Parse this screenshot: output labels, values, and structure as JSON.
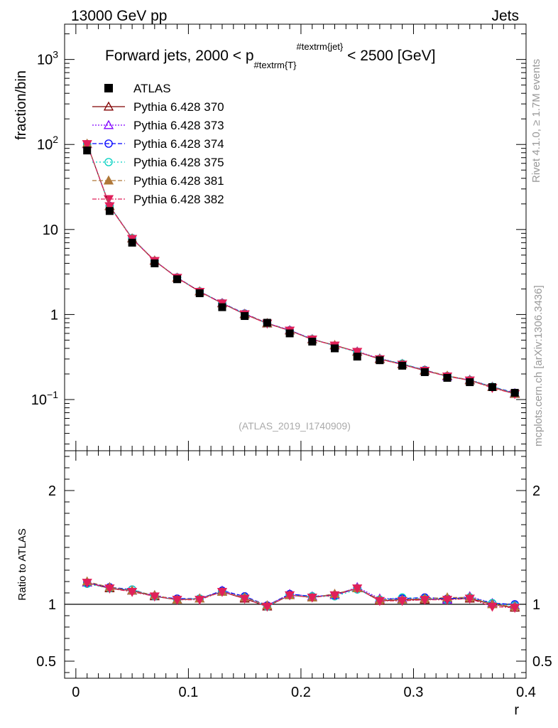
{
  "header": {
    "left": "13000 GeV pp",
    "right": "Jets"
  },
  "side": {
    "rivet": "Rivet 4.1.0, ≥ 1.7M events",
    "site": "mcplots.cern.ch [arXiv:1306.3436]"
  },
  "chart_data": [
    {
      "type": "line",
      "title": "Forward jets, 2000 < p#textrm{T}#textrm{jet} < 2500 [GeV]",
      "title_parts": {
        "pre": "Forward jets, 2000 < p",
        "sub": "#textrm{T}",
        "sup": "#textrm{jet}",
        "post": " < 2500 [GeV]"
      },
      "analysis_id": "(ATLAS_2019_I1740909)",
      "ylabel": "fraction/bin",
      "yscale": "log",
      "ylim": [
        0.025,
        2600
      ],
      "xlim": [
        -0.01,
        0.4
      ],
      "y_ticks": [
        {
          "value": 1000,
          "base": "10",
          "exp": "3"
        },
        {
          "value": 100,
          "base": "10",
          "exp": "2"
        },
        {
          "value": 10,
          "base": "10",
          "exp": ""
        },
        {
          "value": 1,
          "base": "1",
          "exp": ""
        },
        {
          "value": 0.1,
          "base": "10",
          "exp": "−1"
        }
      ],
      "x": [
        0.01,
        0.03,
        0.05,
        0.07,
        0.09,
        0.11,
        0.13,
        0.15,
        0.17,
        0.19,
        0.21,
        0.23,
        0.25,
        0.27,
        0.29,
        0.31,
        0.33,
        0.35,
        0.37,
        0.39
      ],
      "reference": {
        "name": "ATLAS",
        "color": "#000000",
        "values": [
          85,
          16.5,
          7.0,
          4.0,
          2.6,
          1.78,
          1.22,
          0.96,
          0.8,
          0.6,
          0.48,
          0.4,
          0.32,
          0.29,
          0.25,
          0.21,
          0.18,
          0.16,
          0.14,
          0.12
        ]
      },
      "series": [
        {
          "name": "Pythia 6.428 370",
          "color": "#800000",
          "marker": "triangle-up-open",
          "dash": "",
          "ratio": [
            1.19,
            1.14,
            1.12,
            1.07,
            1.04,
            1.05,
            1.11,
            1.05,
            0.98,
            1.08,
            1.06,
            1.09,
            1.14,
            1.03,
            1.04,
            1.04,
            1.05,
            1.05,
            1.0,
            0.97
          ]
        },
        {
          "name": "Pythia 6.428 373",
          "color": "#8000ff",
          "marker": "triangle-up-open",
          "dash": "2,2",
          "ratio": [
            1.19,
            1.15,
            1.12,
            1.08,
            1.04,
            1.05,
            1.12,
            1.06,
            0.99,
            1.09,
            1.07,
            1.08,
            1.15,
            1.05,
            1.05,
            1.05,
            1.04,
            1.07,
            1.01,
            0.99
          ]
        },
        {
          "name": "Pythia 6.428 374",
          "color": "#0000ff",
          "marker": "circle-open",
          "dash": "6,3",
          "ratio": [
            1.19,
            1.15,
            1.13,
            1.07,
            1.05,
            1.05,
            1.12,
            1.07,
            0.99,
            1.09,
            1.07,
            1.08,
            1.14,
            1.04,
            1.05,
            1.06,
            1.05,
            1.06,
            1.01,
            1.0
          ]
        },
        {
          "name": "Pythia 6.428 375",
          "color": "#00d0c0",
          "marker": "circle-open",
          "dash": "2,3",
          "ratio": [
            1.18,
            1.14,
            1.13,
            1.07,
            1.04,
            1.05,
            1.11,
            1.06,
            0.98,
            1.08,
            1.07,
            1.07,
            1.13,
            1.04,
            1.06,
            1.05,
            1.04,
            1.06,
            1.01,
            0.99
          ]
        },
        {
          "name": "Pythia 6.428 381",
          "color": "#b07838",
          "marker": "triangle-up",
          "dash": "6,3",
          "ratio": [
            1.2,
            1.15,
            1.12,
            1.08,
            1.04,
            1.05,
            1.11,
            1.06,
            0.99,
            1.08,
            1.06,
            1.09,
            1.14,
            1.04,
            1.04,
            1.05,
            1.06,
            1.06,
            1.0,
            0.98
          ]
        },
        {
          "name": "Pythia 6.428 382",
          "color": "#e0205a",
          "marker": "triangle-down",
          "dash": "6,2,2,2",
          "ratio": [
            1.19,
            1.14,
            1.11,
            1.07,
            1.04,
            1.04,
            1.11,
            1.05,
            0.98,
            1.08,
            1.06,
            1.08,
            1.14,
            1.03,
            1.03,
            1.04,
            1.04,
            1.05,
            0.98,
            0.97
          ]
        }
      ]
    },
    {
      "type": "line",
      "ylabel": "Ratio to ATLAS",
      "xlabel": "r",
      "ylim": [
        0.35,
        2.35
      ],
      "y_ticks": [
        {
          "value": 0.5,
          "label": "0.5"
        },
        {
          "value": 1,
          "label": "1"
        },
        {
          "value": 2,
          "label": "2"
        }
      ],
      "x_ticks": [
        {
          "value": 0,
          "label": "0"
        },
        {
          "value": 0.1,
          "label": "0.1"
        },
        {
          "value": 0.2,
          "label": "0.2"
        },
        {
          "value": 0.3,
          "label": "0.3"
        },
        {
          "value": 0.4,
          "label": "0.4"
        }
      ],
      "reference_line": 1
    }
  ]
}
